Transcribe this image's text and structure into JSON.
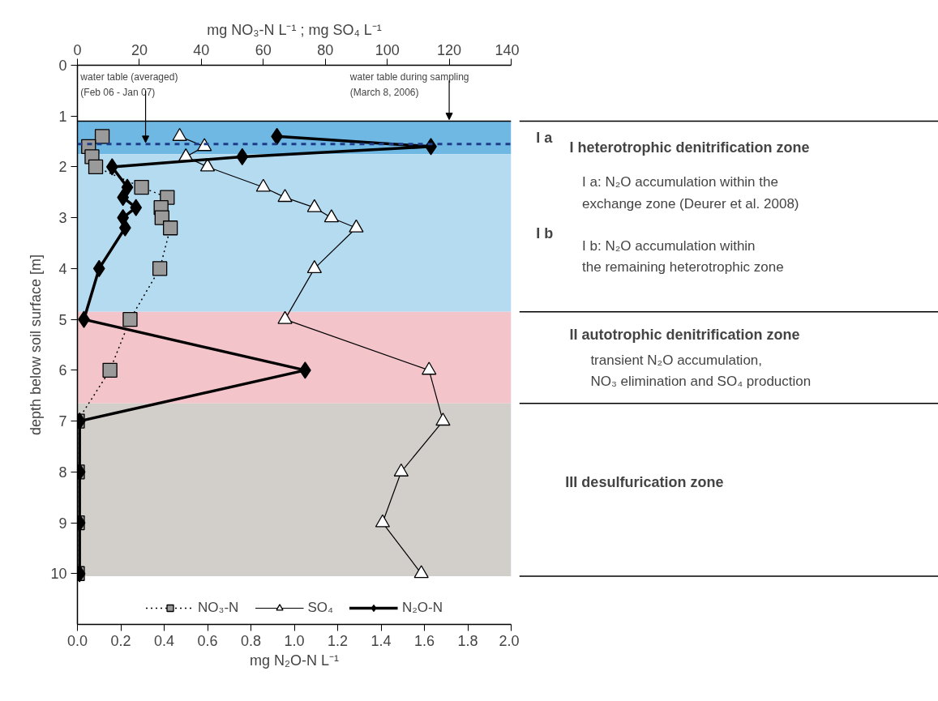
{
  "chart_data": {
    "type": "line",
    "orientation": "horizontal",
    "xlabel": "mg N₂O-N L⁻¹",
    "x2label": "mg NO₃-N L⁻¹ ; mg SO₄ L⁻¹",
    "ylabel": "depth below soil surface [m]",
    "x": [
      1.4,
      1.6,
      1.8,
      2.0,
      2.4,
      2.6,
      2.8,
      3.0,
      3.2,
      4,
      5,
      6,
      7,
      8,
      9,
      10
    ],
    "series": [
      {
        "name": "NO₃-N",
        "color": "#9a9a9a",
        "axis": "x2",
        "marker": "square",
        "line_style": "dotted",
        "values": [
          8,
          3.6,
          4.7,
          5.9,
          20.7,
          29,
          27,
          27.3,
          30,
          26.6,
          17,
          10.5,
          0,
          0,
          0,
          0
        ]
      },
      {
        "name": "SO₄",
        "color": "#ffffff",
        "axis": "x2",
        "marker": "triangle",
        "line_style": "solid",
        "values": [
          33,
          41,
          35,
          42,
          60,
          67,
          76.5,
          82,
          90,
          76.5,
          67,
          113.5,
          118,
          104.5,
          98.5,
          111
        ]
      },
      {
        "name": "N₂O-N",
        "color": "#000000",
        "marker": "diamond",
        "line_style": "solid",
        "values": [
          0.92,
          1.63,
          0.76,
          0.16,
          0.23,
          0.21,
          0.27,
          0.21,
          0.22,
          0.1,
          0.03,
          1.05,
          0.01,
          0.01,
          0.01,
          0.01
        ]
      }
    ],
    "xlim": [
      0,
      2
    ],
    "xticks": [
      {
        "value": 0,
        "label": "0.0"
      },
      0.2,
      0.4,
      0.6,
      0.8,
      {
        "value": 1,
        "label": "1.0"
      },
      1.2,
      1.4,
      1.6,
      1.8,
      {
        "value": 2,
        "label": "2.0"
      }
    ],
    "x2lim": [
      0,
      140
    ],
    "x2ticks": [
      0,
      20,
      40,
      60,
      80,
      100,
      120,
      140
    ],
    "ylim": [
      11,
      0
    ],
    "yticks": [
      0,
      1,
      2,
      3,
      4,
      5,
      6,
      7,
      8,
      9,
      10
    ],
    "grid": false,
    "legend": "bottom",
    "bands": [
      {
        "axis": "y",
        "from": 1.1,
        "to": 1.75,
        "label": "I a",
        "color": "#6fb8e4"
      },
      {
        "axis": "y",
        "from": 1.75,
        "to": 4.85,
        "label": "I b",
        "color": "#b5dbf1"
      },
      {
        "axis": "y",
        "from": 4.85,
        "to": 6.65,
        "color": "#f3c4ca"
      },
      {
        "axis": "y",
        "from": 6.65,
        "to": 10.05,
        "color": "#d2cfcb"
      }
    ],
    "ref_lines": [
      {
        "axis": "y",
        "value": 1.55,
        "label": "water table (averaged)\n(Feb 06 - Jan 07)",
        "color": "#1f3c88",
        "line_style": "dashed"
      },
      {
        "axis": "y",
        "value": 1.1,
        "label": "water table during sampling\n(March 8, 2006)",
        "color": "#000000",
        "line_style": "solid"
      }
    ],
    "annotations": [
      "I  heterotrophic denitrification zone",
      "I a: N₂O accumulation within the\nexchange zone (Deurer et al. 2008)",
      "I b: N₂O accumulation within\nthe remaining heterotrophic zone",
      "II  autotrophic denitrification zone",
      "transient N₂O accumulation,\nNO₃ elimination and SO₄ production",
      "III  desulfurication zone"
    ]
  }
}
